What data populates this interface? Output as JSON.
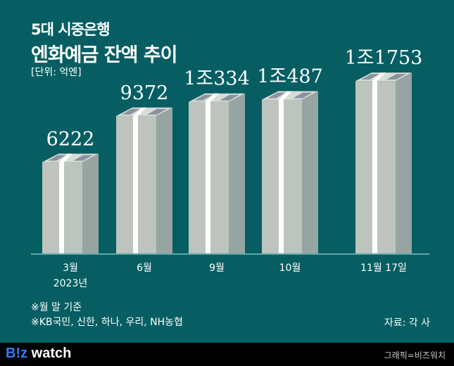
{
  "header": {
    "title_line1": "5대 시중은행",
    "title_line2": "엔화예금 잔액 추이",
    "unit": "[단위: 억엔]"
  },
  "chart_data": {
    "type": "bar",
    "title": "5대 시중은행 엔화예금 잔액 추이",
    "ylabel": "억엔",
    "categories": [
      "3월",
      "6월",
      "9월",
      "10월",
      "11월 17일"
    ],
    "category_sublabels": [
      "2023년",
      "",
      "",
      "",
      ""
    ],
    "values": [
      6222,
      9372,
      10334,
      10487,
      11753
    ],
    "value_labels": [
      "6222",
      "9372",
      "1조334",
      "1조487",
      "1조1753"
    ],
    "ylim": [
      0,
      12000
    ],
    "grid": false
  },
  "notes": [
    "※월 말 기준",
    "※KB국민, 신한, 하나, 우리, NH농협"
  ],
  "source": "자료: 각 사",
  "footer": {
    "logo_b": "B!z",
    "logo_rest": " watch",
    "credit": "그래픽=비즈워치"
  },
  "colors": {
    "background": "#065e62",
    "bar_front": "#bcc4bd",
    "bar_side": "#97a5a2",
    "stripe": "#ffffff"
  }
}
